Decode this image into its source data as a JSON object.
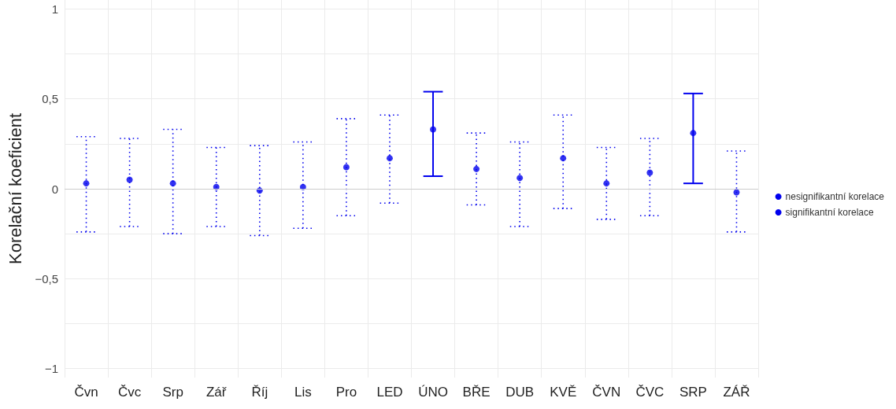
{
  "chart_data": {
    "type": "scatter",
    "ylabel": "Korelační koeficient",
    "categories": [
      "Čvn",
      "Čvc",
      "Srp",
      "Zář",
      "Říj",
      "Lis",
      "Pro",
      "LED",
      "ÚNO",
      "BŘE",
      "DUB",
      "KVĚ",
      "ČVN",
      "ČVC",
      "SRP",
      "ZÁŘ"
    ],
    "series": [
      {
        "name": "nesignifikantní korelace",
        "color": "#0000ee",
        "line_style": "dotted",
        "values": [
          0.03,
          0.05,
          0.03,
          0.01,
          -0.01,
          0.01,
          0.12,
          0.17,
          null,
          0.11,
          0.06,
          0.17,
          0.03,
          0.09,
          null,
          -0.02
        ],
        "errors": [
          [
            -0.24,
            0.29
          ],
          [
            -0.21,
            0.28
          ],
          [
            -0.25,
            0.33
          ],
          [
            -0.21,
            0.23
          ],
          [
            -0.26,
            0.24
          ],
          [
            -0.22,
            0.26
          ],
          [
            -0.15,
            0.39
          ],
          [
            -0.08,
            0.41
          ],
          null,
          [
            -0.09,
            0.31
          ],
          [
            -0.21,
            0.26
          ],
          [
            -0.11,
            0.41
          ],
          [
            -0.17,
            0.23
          ],
          [
            -0.15,
            0.28
          ],
          null,
          [
            -0.24,
            0.21
          ]
        ]
      },
      {
        "name": "signifikantní korelace",
        "color": "#0000ee",
        "line_style": "solid",
        "values": [
          null,
          null,
          null,
          null,
          null,
          null,
          null,
          null,
          0.33,
          null,
          null,
          null,
          null,
          null,
          0.31,
          null
        ],
        "errors": [
          null,
          null,
          null,
          null,
          null,
          null,
          null,
          null,
          [
            0.07,
            0.54
          ],
          null,
          null,
          null,
          null,
          null,
          [
            0.03,
            0.53
          ],
          null
        ]
      }
    ],
    "ylim": [
      -1.05,
      1.05
    ],
    "yticks": [
      {
        "value": -1,
        "label": "−1"
      },
      {
        "value": -0.75,
        "label": null
      },
      {
        "value": -0.5,
        "label": "−0,5"
      },
      {
        "value": -0.25,
        "label": null
      },
      0,
      {
        "value": 0.25,
        "label": null
      },
      {
        "value": 0.5,
        "label": "0,5"
      },
      {
        "value": 0.75,
        "label": null
      },
      1
    ],
    "ref_lines": [
      {
        "axis": "y",
        "value": 0,
        "color": "#cccccc"
      }
    ],
    "grid": true,
    "legend": "right",
    "marker": "circle"
  }
}
